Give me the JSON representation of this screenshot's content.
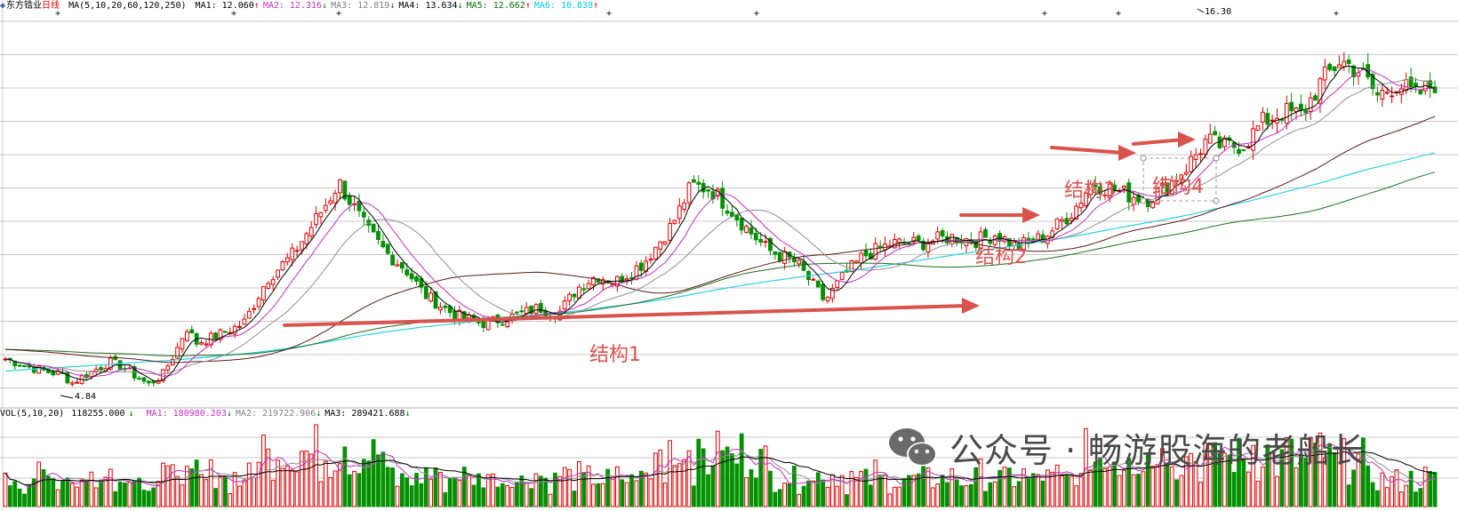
{
  "header": {
    "stock_name": "东方锆业",
    "period": "日线",
    "ma_params": "MA(5,10,20,60,120,250)",
    "items": [
      {
        "label": "MA1: 12.060",
        "arrow": "↑",
        "color": "#000000",
        "arrow_color": "#e00000"
      },
      {
        "label": "MA2: 12.316",
        "arrow": "↓",
        "color": "#c030c0",
        "arrow_color": "#008000"
      },
      {
        "label": "MA3: 12.819",
        "arrow": "↓",
        "color": "#808080",
        "arrow_color": "#008000"
      },
      {
        "label": "MA4: 13.634",
        "arrow": "↓",
        "color": "#000000",
        "arrow_color": "#008000"
      },
      {
        "label": "MA5: 12.662",
        "arrow": "↑",
        "color": "#007000",
        "arrow_color": "#e00000"
      },
      {
        "label": "MA6: 10.838",
        "arrow": "↑",
        "color": "#00c8e0",
        "arrow_color": "#e00000"
      }
    ]
  },
  "vol_header": {
    "title": "VOL(5,10,20)",
    "value": "118255.000",
    "value_arrow": "↓",
    "items": [
      {
        "label": "MA1: 180980.203",
        "arrow": "↓",
        "color": "#c030c0"
      },
      {
        "label": "MA2: 219722.906",
        "arrow": "↓",
        "color": "#808080"
      },
      {
        "label": "MA3: 289421.688",
        "arrow": "↓",
        "color": "#000000"
      }
    ]
  },
  "annotations": [
    {
      "text": "结构1"
    },
    {
      "text": "结构2"
    },
    {
      "text": "结构3"
    },
    {
      "text": "结构4"
    }
  ],
  "price_labels": {
    "high": "16.30",
    "low": "4.84"
  },
  "watermark": {
    "text": "公众号 · 畅游股海的老船长"
  },
  "colors": {
    "up": "#e00000",
    "down": "#009000",
    "ma5": "#000000",
    "ma10": "#c030c0",
    "ma20": "#909090",
    "ma60": "#5a1a1a",
    "ma120": "#207020",
    "ma250": "#30d0e0",
    "annotation": "#d9534f",
    "grid": "#c8c8c8"
  },
  "chart_data": {
    "type": "candlestick",
    "ylim": [
      4.5,
      16.8
    ],
    "high": 16.3,
    "low": 4.84,
    "n_bars": 300,
    "volume_panel": true
  }
}
